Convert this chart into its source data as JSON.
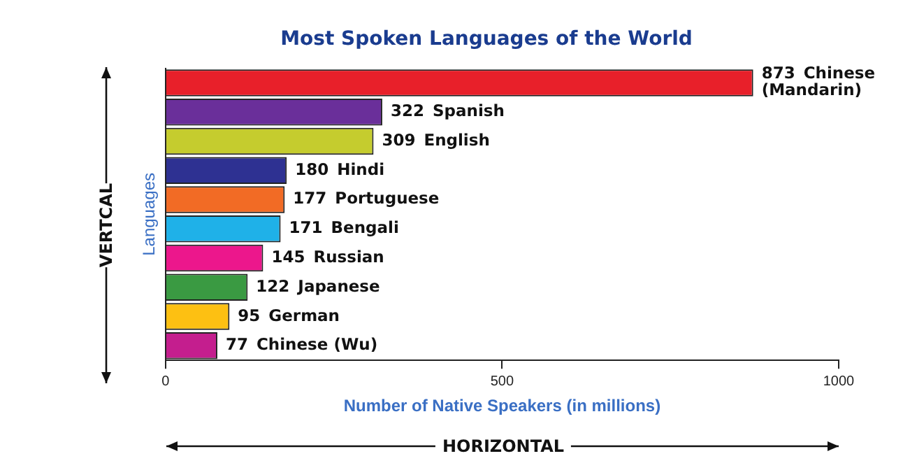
{
  "chart_data": {
    "type": "bar",
    "orientation": "horizontal",
    "title": "Most Spoken Languages of the World",
    "xlabel": "Number of Native Speakers (in millions)",
    "ylabel": "Languages",
    "categories": [
      "Chinese (Mandarin)",
      "Spanish",
      "English",
      "Hindi",
      "Portuguese",
      "Bengali",
      "Russian",
      "Japanese",
      "German",
      "Chinese (Wu)"
    ],
    "values": [
      873,
      322,
      309,
      180,
      177,
      171,
      145,
      122,
      95,
      77
    ],
    "colors": [
      "#e8202a",
      "#6a2f9a",
      "#c5cc2e",
      "#2e3192",
      "#f26b25",
      "#1fb1e8",
      "#ec178c",
      "#3a9a42",
      "#fdc012",
      "#c41e8e"
    ],
    "xlim": [
      0,
      1000
    ],
    "xticks": [
      0,
      500,
      1000
    ],
    "grid": false,
    "legend": false,
    "data_labels": true,
    "tick_labels": "x",
    "annotations": [
      "VERTCAL",
      "HORIZONTAL"
    ]
  }
}
